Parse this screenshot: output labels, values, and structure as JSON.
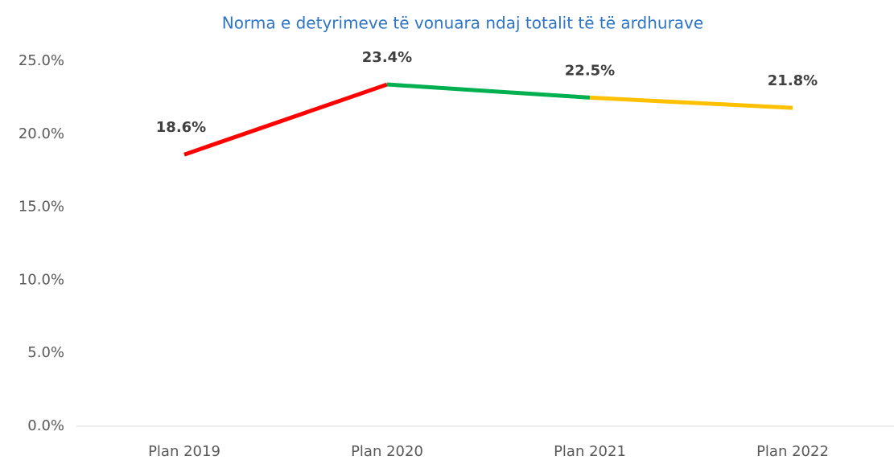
{
  "chart_data": {
    "type": "line",
    "title": "Norma e detyrimeve të vonuara ndaj totalit të të ardhurave",
    "categories": [
      "Plan 2019",
      "Plan 2020",
      "Plan 2021",
      "Plan 2022"
    ],
    "series": [
      {
        "values": [
          18.6,
          23.4,
          22.5,
          21.8
        ],
        "value_labels": [
          "18.6%",
          "23.4%",
          "22.5%",
          "21.8%"
        ],
        "segment_colors": [
          "#ff0000",
          "#00b050",
          "#ffc000"
        ]
      }
    ],
    "ylim": [
      0,
      25
    ],
    "yticks": [
      {
        "value": 0,
        "label": "0.0%"
      },
      {
        "value": 5,
        "label": "5.0%"
      },
      {
        "value": 10,
        "label": "10.0%"
      },
      {
        "value": 15,
        "label": "15.0%"
      },
      {
        "value": 20,
        "label": "20.0%"
      },
      {
        "value": 25,
        "label": "25.0%"
      }
    ],
    "grid": false
  }
}
